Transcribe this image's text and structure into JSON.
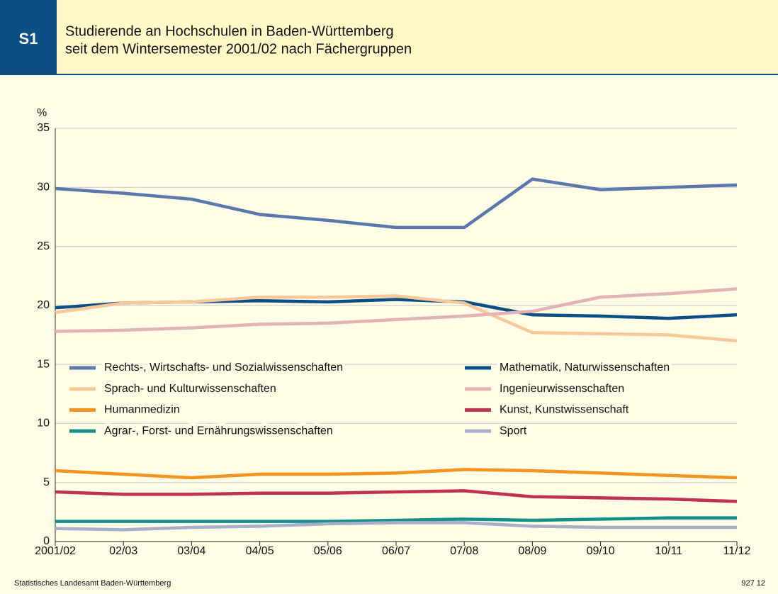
{
  "header": {
    "badge": "S1",
    "title_lines": [
      "Studierende an Hochschulen in Baden-Württemberg",
      "seit dem Wintersemester 2001/02 nach Fächergruppen"
    ]
  },
  "chart_data": {
    "type": "line",
    "y_label": "%",
    "categories": [
      "2001/02",
      "02/03",
      "03/04",
      "04/05",
      "05/06",
      "06/07",
      "07/08",
      "08/09",
      "09/10",
      "10/11",
      "11/12"
    ],
    "ylim": [
      0,
      35
    ],
    "yticks": [
      0,
      5,
      10,
      15,
      20,
      25,
      30,
      35
    ],
    "grid": true,
    "series": [
      {
        "name": "Rechts-, Wirtschafts- und Sozialwissenschaften",
        "color": "#5b78ac",
        "values": [
          29.9,
          29.5,
          29.0,
          27.7,
          27.2,
          26.6,
          26.6,
          30.7,
          29.8,
          30.0,
          30.2
        ]
      },
      {
        "name": "Mathematik, Naturwissenschaften",
        "color": "#0b4f86",
        "values": [
          19.8,
          20.2,
          20.3,
          20.4,
          20.3,
          20.5,
          20.3,
          19.2,
          19.1,
          18.9,
          19.2
        ]
      },
      {
        "name": "Sprach- und Kulturwissenschaften",
        "color": "#f8c89a",
        "values": [
          19.4,
          20.2,
          20.3,
          20.7,
          20.7,
          20.8,
          20.2,
          17.7,
          17.6,
          17.5,
          17.0
        ]
      },
      {
        "name": "Ingenieurwissenschaften",
        "color": "#e3b2b2",
        "values": [
          17.8,
          17.9,
          18.1,
          18.4,
          18.5,
          18.8,
          19.1,
          19.5,
          20.7,
          21.0,
          21.4
        ]
      },
      {
        "name": "Humanmedizin",
        "color": "#f39320",
        "values": [
          6.0,
          5.7,
          5.4,
          5.7,
          5.7,
          5.8,
          6.1,
          6.0,
          5.8,
          5.6,
          5.4
        ]
      },
      {
        "name": "Kunst, Kunstwissenschaft",
        "color": "#c0304f",
        "values": [
          4.2,
          4.0,
          4.0,
          4.1,
          4.1,
          4.2,
          4.3,
          3.8,
          3.7,
          3.6,
          3.4
        ]
      },
      {
        "name": "Agrar-, Forst- und Ernährungswissenschaften",
        "color": "#139088",
        "values": [
          1.7,
          1.7,
          1.7,
          1.7,
          1.7,
          1.8,
          1.9,
          1.8,
          1.9,
          2.0,
          2.0
        ]
      },
      {
        "name": "Sport",
        "color": "#a9aec9",
        "values": [
          1.1,
          1.0,
          1.2,
          1.3,
          1.5,
          1.6,
          1.6,
          1.3,
          1.2,
          1.2,
          1.2
        ]
      }
    ]
  },
  "footer": {
    "source": "Statistisches Landesamt Baden-Württemberg",
    "number": "927 12"
  }
}
